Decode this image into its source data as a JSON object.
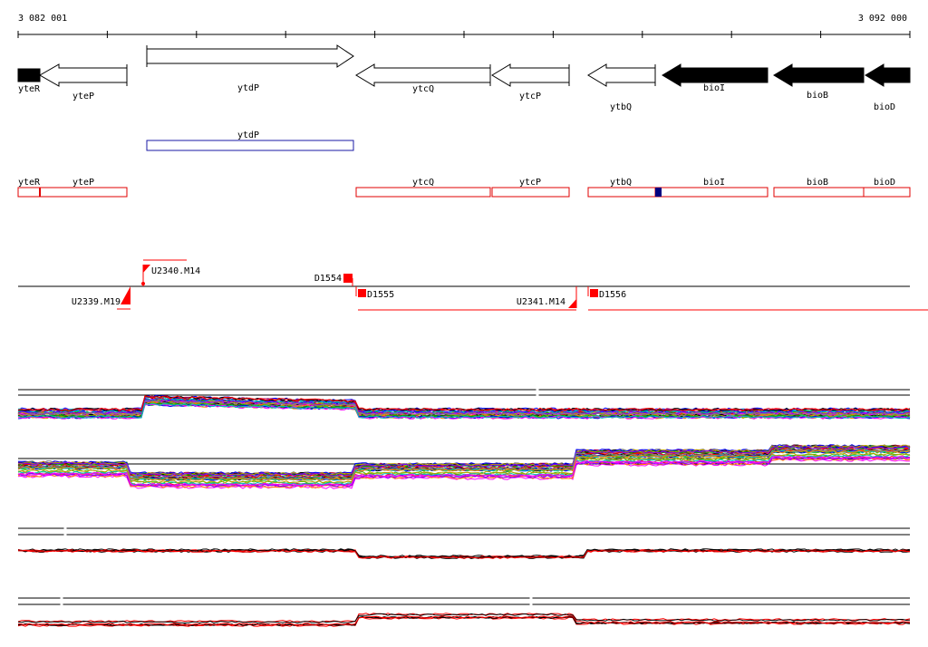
{
  "ruler": {
    "start_label": "3 082 001",
    "end_label": "3 092 000"
  },
  "genes": [
    {
      "name": "yteR",
      "strand": "forward",
      "fill": "black"
    },
    {
      "name": "yteP",
      "strand": "reverse",
      "fill": "white"
    },
    {
      "name": "ytdP",
      "strand": "forward",
      "fill": "white"
    },
    {
      "name": "ytcQ",
      "strand": "reverse",
      "fill": "white"
    },
    {
      "name": "ytcP",
      "strand": "reverse",
      "fill": "white"
    },
    {
      "name": "ytbQ",
      "strand": "reverse",
      "fill": "white"
    },
    {
      "name": "bioI",
      "strand": "reverse",
      "fill": "black"
    },
    {
      "name": "bioB",
      "strand": "reverse",
      "fill": "black"
    },
    {
      "name": "bioD",
      "strand": "reverse",
      "fill": "black"
    }
  ],
  "blue_feature": {
    "label": "ytdP",
    "color": "#1a1aa6"
  },
  "red_features": [
    "yteR",
    "yteP",
    "ytcQ",
    "ytcP",
    "ytbQ",
    "bioI",
    "bioB",
    "bioD"
  ],
  "red_feature_color": "#e00000",
  "marker_color": "#000080",
  "sites": [
    "U2339.M19",
    "U2340.M14",
    "D1554",
    "D1555",
    "U2341.M14",
    "D1556"
  ],
  "site_color": "#ff0000",
  "track_palette": [
    "#000000",
    "#ff0000",
    "#00a000",
    "#0000ff",
    "#ff00ff",
    "#00c0c0",
    "#c0a000",
    "#ff8000",
    "#8000ff",
    "#808080",
    "#c00040",
    "#40c000"
  ]
}
